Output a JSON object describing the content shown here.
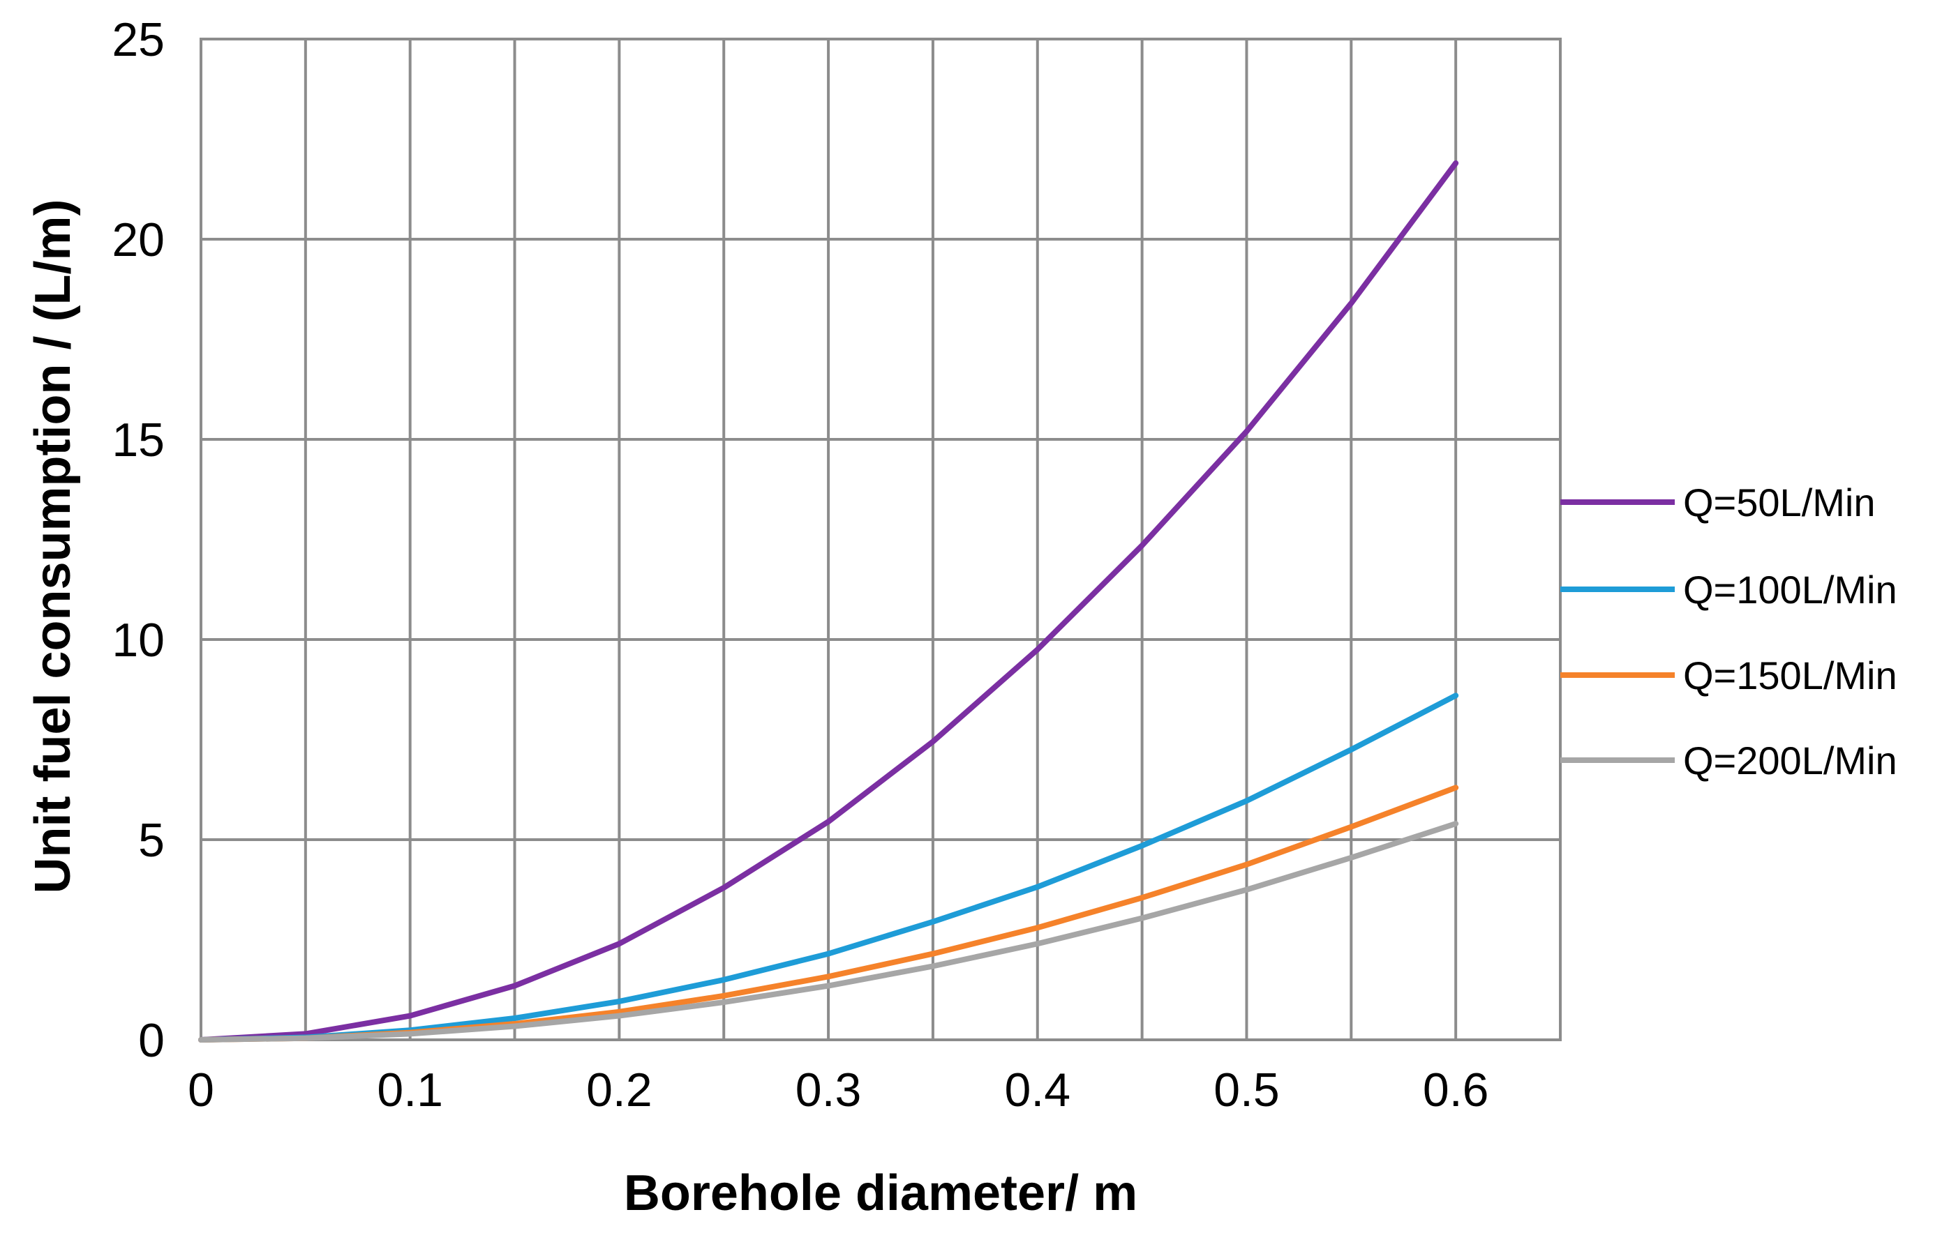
{
  "chart_data": {
    "type": "line",
    "title": "",
    "xlabel": "Borehole diameter/ m",
    "ylabel": "Unit fuel consumption / (L/m)",
    "xlim": [
      0,
      0.65
    ],
    "ylim": [
      0,
      25
    ],
    "x_ticks": [
      0,
      0.1,
      0.2,
      0.3,
      0.4,
      0.5,
      0.6
    ],
    "x_tick_labels": [
      "0",
      "0.1",
      "0.2",
      "0.3",
      "0.4",
      "0.5",
      "0.6"
    ],
    "y_ticks": [
      0,
      5,
      10,
      15,
      20,
      25
    ],
    "y_tick_labels": [
      "0",
      "5",
      "10",
      "15",
      "20",
      "25"
    ],
    "grid": true,
    "grid_x_step": 0.05,
    "legend_position": "right",
    "x": [
      0,
      0.05,
      0.1,
      0.15,
      0.2,
      0.25,
      0.3,
      0.35,
      0.4,
      0.45,
      0.5,
      0.55,
      0.6
    ],
    "series": [
      {
        "name": "Q=50L/Min",
        "color": "#7B2FA2",
        "values": [
          0,
          0.15,
          0.6,
          1.35,
          2.4,
          3.8,
          5.45,
          7.45,
          9.75,
          12.35,
          15.2,
          18.4,
          21.9
        ]
      },
      {
        "name": "Q=100L/Min",
        "color": "#1E9CD7",
        "values": [
          0,
          0.06,
          0.24,
          0.54,
          0.96,
          1.5,
          2.15,
          2.95,
          3.82,
          4.85,
          5.97,
          7.25,
          8.6
        ]
      },
      {
        "name": "Q=150L/Min",
        "color": "#F5822A",
        "values": [
          0,
          0.04,
          0.18,
          0.4,
          0.7,
          1.1,
          1.58,
          2.15,
          2.8,
          3.55,
          4.38,
          5.32,
          6.3
        ]
      },
      {
        "name": "Q=200L/Min",
        "color": "#A6A6A6",
        "values": [
          0,
          0.04,
          0.15,
          0.34,
          0.6,
          0.94,
          1.35,
          1.84,
          2.4,
          3.04,
          3.75,
          4.55,
          5.4
        ]
      }
    ]
  }
}
